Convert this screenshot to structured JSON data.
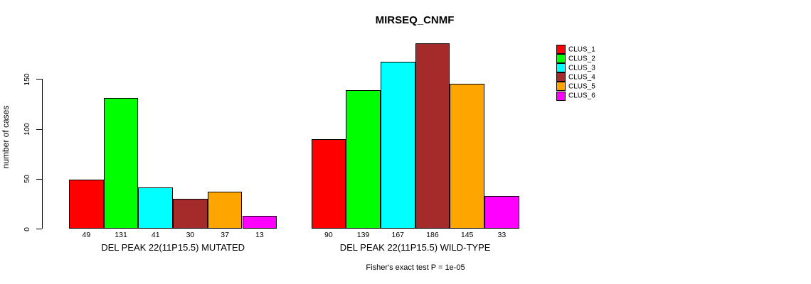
{
  "chart_data": {
    "type": "bar",
    "title": "MIRSEQ_CNMF",
    "ylabel": "number of cases",
    "xlabel": "",
    "ylim": [
      0,
      150
    ],
    "yticks": [
      0,
      50,
      100,
      150
    ],
    "grid": false,
    "legend_position": "right-outside",
    "series_labels": [
      "CLUS_1",
      "CLUS_2",
      "CLUS_3",
      "CLUS_4",
      "CLUS_5",
      "CLUS_6"
    ],
    "colors": [
      "#FF0000",
      "#00FF00",
      "#00FFFF",
      "#A52A2A",
      "#FFA500",
      "#FF00FF"
    ],
    "groups": [
      {
        "label": "DEL PEAK 22(11P15.5) MUTATED",
        "values": [
          49,
          131,
          41,
          30,
          37,
          13
        ]
      },
      {
        "label": "DEL PEAK 22(11P15.5) WILD-TYPE",
        "values": [
          90,
          139,
          167,
          186,
          145,
          33
        ]
      }
    ],
    "annotation": "Fisher's exact test P = 1e-05"
  }
}
